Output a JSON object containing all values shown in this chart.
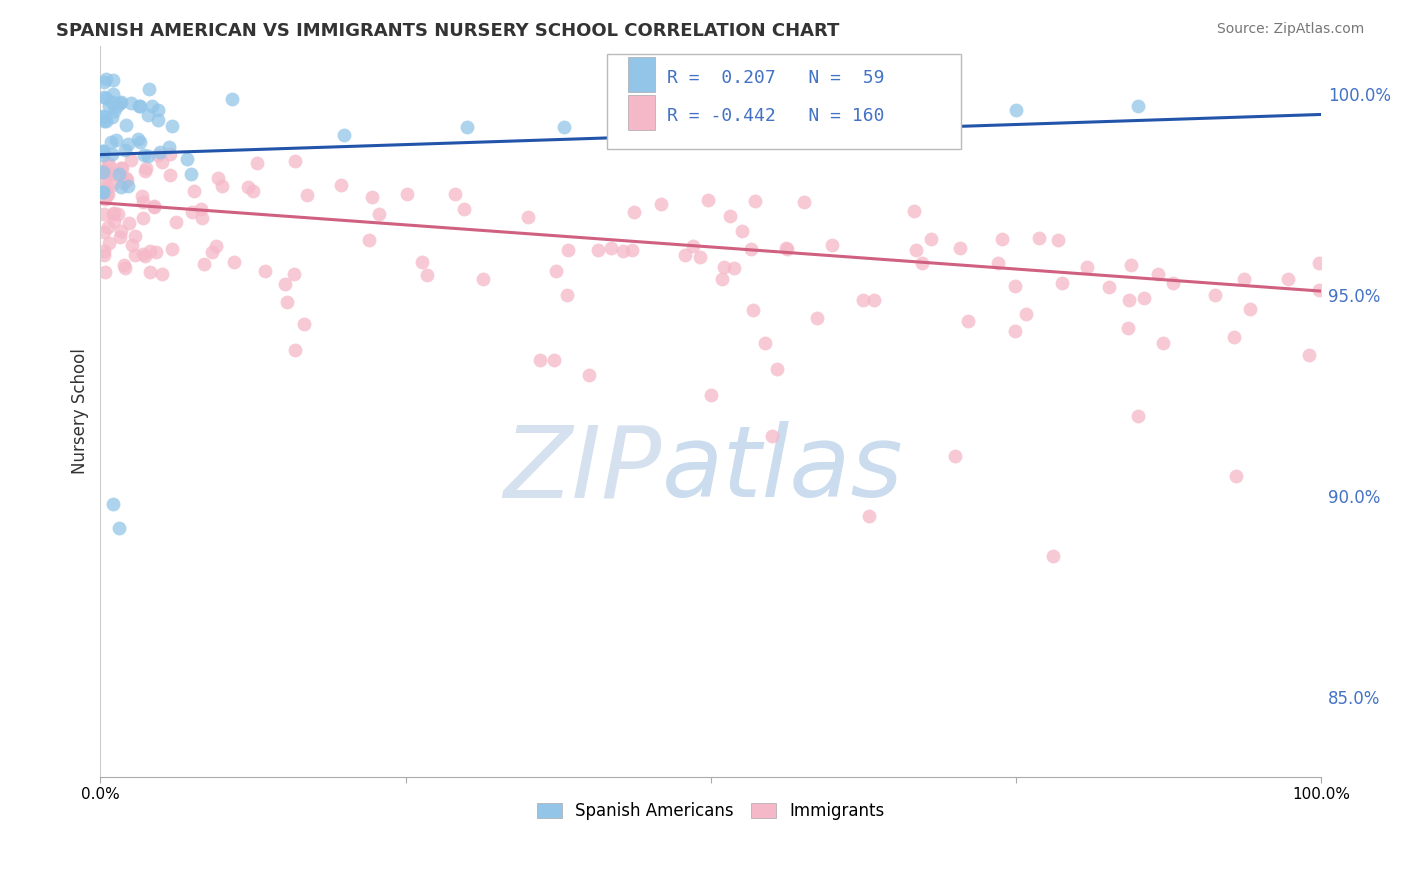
{
  "title": "SPANISH AMERICAN VS IMMIGRANTS NURSERY SCHOOL CORRELATION CHART",
  "source": "Source: ZipAtlas.com",
  "ylabel": "Nursery School",
  "watermark_zip": "ZIP",
  "watermark_atlas": "atlas",
  "right_yticks": [
    100.0,
    95.0,
    90.0,
    85.0
  ],
  "legend_blue_R": "0.207",
  "legend_blue_N": "59",
  "legend_pink_R": "-0.442",
  "legend_pink_N": "160",
  "blue_color": "#92C5E8",
  "pink_color": "#F5B8C8",
  "blue_line_color": "#2255AA",
  "pink_line_color": "#D06080",
  "background_color": "#FFFFFF",
  "ylim_low": 83.0,
  "ylim_high": 101.2,
  "xlim_low": 0.0,
  "xlim_high": 100.0,
  "blue_trend_start_y": 98.5,
  "blue_trend_end_y": 99.5,
  "pink_trend_start_y": 97.3,
  "pink_trend_end_y": 95.1
}
